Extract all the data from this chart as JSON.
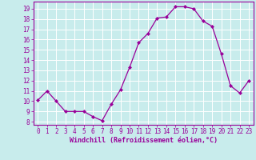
{
  "x": [
    0,
    1,
    2,
    3,
    4,
    5,
    6,
    7,
    8,
    9,
    10,
    11,
    12,
    13,
    14,
    15,
    16,
    17,
    18,
    19,
    20,
    21,
    22,
    23
  ],
  "y": [
    10.1,
    11.0,
    10.0,
    9.0,
    9.0,
    9.0,
    8.5,
    8.1,
    9.7,
    11.1,
    13.3,
    15.7,
    16.6,
    18.1,
    18.2,
    19.2,
    19.2,
    19.0,
    17.8,
    17.3,
    14.6,
    11.5,
    10.8,
    12.0
  ],
  "line_color": "#990099",
  "marker": "D",
  "marker_size": 2.0,
  "bg_color": "#c8ecec",
  "grid_color": "#ffffff",
  "xlabel": "Windchill (Refroidissement éolien,°C)",
  "ylabel_ticks": [
    8,
    9,
    10,
    11,
    12,
    13,
    14,
    15,
    16,
    17,
    18,
    19
  ],
  "ylim": [
    7.7,
    19.7
  ],
  "xlim": [
    -0.5,
    23.5
  ],
  "tick_color": "#990099",
  "label_color": "#990099",
  "tick_fontsize": 5.5,
  "xlabel_fontsize": 6.0
}
